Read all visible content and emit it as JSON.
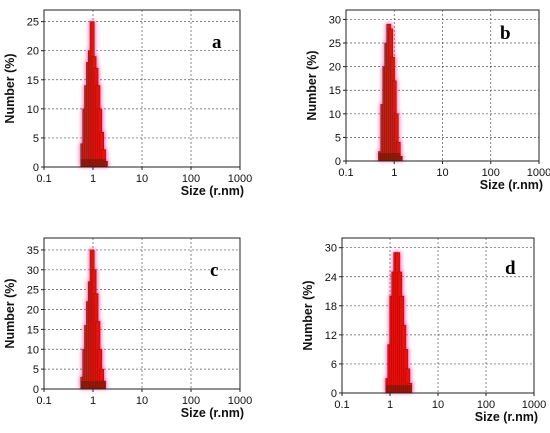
{
  "chart_data": [
    {
      "type": "bar",
      "panel_label": "a",
      "xlabel": "Size (r.nm)",
      "ylabel": "Number (%)",
      "xscale": "log",
      "xlim": [
        0.1,
        1000
      ],
      "ylim": [
        0,
        27
      ],
      "xticks": [
        "0.1",
        "1",
        "10",
        "100",
        "1000"
      ],
      "yticks": [
        0,
        5,
        10,
        15,
        20,
        25
      ],
      "grid": true,
      "bar_color": "#e3130f",
      "edge_color": "#7a1a0a",
      "glow_color": "#ff3fa0",
      "bins_x": [
        0.62,
        0.68,
        0.74,
        0.81,
        0.88,
        0.96,
        1.05,
        1.15,
        1.26,
        1.37,
        1.5,
        1.64,
        1.79
      ],
      "values": [
        4,
        10,
        14,
        18,
        20,
        25,
        19,
        17,
        14,
        10,
        6,
        3,
        1
      ]
    },
    {
      "type": "bar",
      "panel_label": "b",
      "xlabel": "Size (r.nm)",
      "ylabel": "Number (%)",
      "xscale": "log",
      "xlim": [
        0.1,
        1000
      ],
      "ylim": [
        0,
        32
      ],
      "xticks": [
        "0.1",
        "1",
        "10",
        "100",
        "1000"
      ],
      "yticks": [
        0,
        5,
        10,
        15,
        20,
        25,
        30
      ],
      "grid": true,
      "bar_color": "#e3130f",
      "edge_color": "#7a1a0a",
      "glow_color": "#ff3fa0",
      "bins_x": [
        0.52,
        0.58,
        0.64,
        0.7,
        0.77,
        0.84,
        0.92,
        1.0,
        1.1,
        1.21,
        1.33
      ],
      "values": [
        2,
        12,
        20,
        25,
        29,
        28,
        22,
        17,
        10,
        4,
        1
      ]
    },
    {
      "type": "bar",
      "panel_label": "c",
      "xlabel": "Size (r.nm)",
      "ylabel": "Number (%)",
      "xscale": "log",
      "xlim": [
        0.1,
        1000
      ],
      "ylim": [
        0,
        38
      ],
      "xticks": [
        "0.1",
        "1",
        "10",
        "100",
        "1000"
      ],
      "yticks": [
        0,
        5,
        10,
        15,
        20,
        25,
        30,
        35
      ],
      "grid": true,
      "bar_color": "#e3130f",
      "edge_color": "#7a1a0a",
      "glow_color": "#ff3fa0",
      "bins_x": [
        0.62,
        0.68,
        0.74,
        0.81,
        0.88,
        0.96,
        1.05,
        1.15,
        1.26,
        1.37,
        1.5,
        1.64
      ],
      "values": [
        3,
        10,
        16,
        22,
        27,
        35,
        30,
        24,
        17,
        10,
        5,
        2
      ]
    },
    {
      "type": "bar",
      "panel_label": "d",
      "xlabel": "Size (r.nm)",
      "ylabel": "Number (%)",
      "xscale": "log",
      "xlim": [
        0.1,
        1000
      ],
      "ylim": [
        0,
        32
      ],
      "xticks": [
        "0.1",
        "1",
        "10",
        "100",
        "1000"
      ],
      "yticks": [
        0,
        6,
        12,
        18,
        24,
        30
      ],
      "grid": true,
      "bar_color": "#e3130f",
      "edge_color": "#7a1a0a",
      "glow_color": "#ff3fa0",
      "bins_x": [
        0.9,
        0.99,
        1.09,
        1.2,
        1.32,
        1.45,
        1.6,
        1.76,
        1.94,
        2.13,
        2.35,
        2.58
      ],
      "values": [
        3,
        10,
        20,
        25,
        29,
        29,
        25,
        20,
        14,
        9,
        5,
        2
      ]
    }
  ]
}
